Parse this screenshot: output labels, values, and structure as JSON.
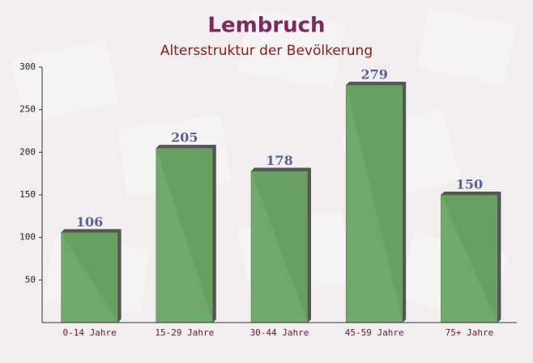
{
  "chart_data": {
    "type": "bar",
    "title": "Lembruch",
    "subtitle": "Altersstruktur der Bevölkerung",
    "categories": [
      "0-14 Jahre",
      "15-29 Jahre",
      "30-44 Jahre",
      "45-59 Jahre",
      "75+ Jahre"
    ],
    "values": [
      106,
      205,
      178,
      279,
      150
    ],
    "color": "#6aa565",
    "ylim": [
      0,
      300
    ],
    "yticks": [
      50,
      100,
      150,
      200,
      250,
      300
    ]
  }
}
